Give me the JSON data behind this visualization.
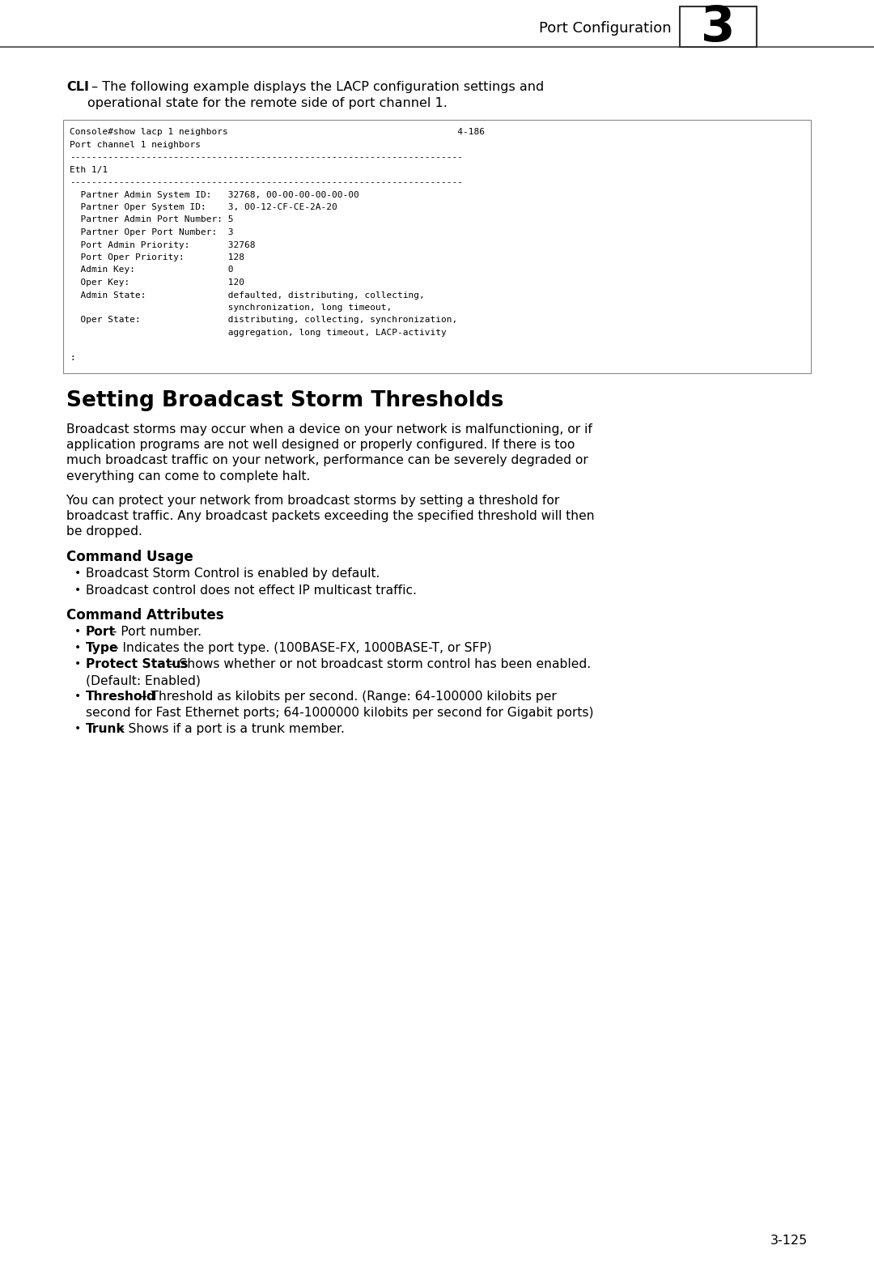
{
  "page_background": "#ffffff",
  "header_text": "Port Configuration",
  "header_number": "3",
  "cli_label": "CLI",
  "cli_intro_bold": "CLI",
  "cli_intro_rest": " – The following example displays the LACP configuration settings and\noperational state for the remote side of port channel 1.",
  "code_lines": [
    "Console#show lacp 1 neighbors                                          4-186",
    "Port channel 1 neighbors",
    "------------------------------------------------------------------------",
    "Eth 1/1",
    "------------------------------------------------------------------------",
    "  Partner Admin System ID:   32768, 00-00-00-00-00-00",
    "  Partner Oper System ID:    3, 00-12-CF-CE-2A-20",
    "  Partner Admin Port Number: 5",
    "  Partner Oper Port Number:  3",
    "  Port Admin Priority:       32768",
    "  Port Oper Priority:        128",
    "  Admin Key:                 0",
    "  Oper Key:                  120",
    "  Admin State:               defaulted, distributing, collecting,",
    "                             synchronization, long timeout,",
    "  Oper State:                distributing, collecting, synchronization,",
    "                             aggregation, long timeout, LACP-activity",
    "",
    ":"
  ],
  "section_title": "Setting Broadcast Storm Thresholds",
  "para1_lines": [
    "Broadcast storms may occur when a device on your network is malfunctioning, or if",
    "application programs are not well designed or properly configured. If there is too",
    "much broadcast traffic on your network, performance can be severely degraded or",
    "everything can come to complete halt."
  ],
  "para2_lines": [
    "You can protect your network from broadcast storms by setting a threshold for",
    "broadcast traffic. Any broadcast packets exceeding the specified threshold will then",
    "be dropped."
  ],
  "cmd_usage_title": "Command Usage",
  "cmd_usage_bullets": [
    "Broadcast Storm Control is enabled by default.",
    "Broadcast control does not effect IP multicast traffic."
  ],
  "cmd_attr_title": "Command Attributes",
  "cmd_attr_bullets": [
    [
      [
        "Port",
        true
      ],
      [
        " - Port number.",
        false
      ]
    ],
    [
      [
        "Type",
        true
      ],
      [
        " – Indicates the port type. (100BASE-FX, 1000BASE-T, or SFP)",
        false
      ]
    ],
    [
      [
        "Protect Status",
        true
      ],
      [
        " – Shows whether or not broadcast storm control has been enabled.",
        false
      ],
      [
        "(Default: Enabled)",
        false,
        true
      ]
    ],
    [
      [
        "Threshold",
        true
      ],
      [
        " – Threshold as kilobits per second. (Range: 64-100000 kilobits per",
        false
      ],
      [
        "second for Fast Ethernet ports; 64-1000000 kilobits per second for Gigabit ports)",
        false,
        true
      ]
    ],
    [
      [
        "Trunk",
        true
      ],
      [
        " – Shows if a port is a trunk member.",
        false
      ]
    ]
  ],
  "page_number": "3-125",
  "text_color": "#000000",
  "code_border": "#888888"
}
